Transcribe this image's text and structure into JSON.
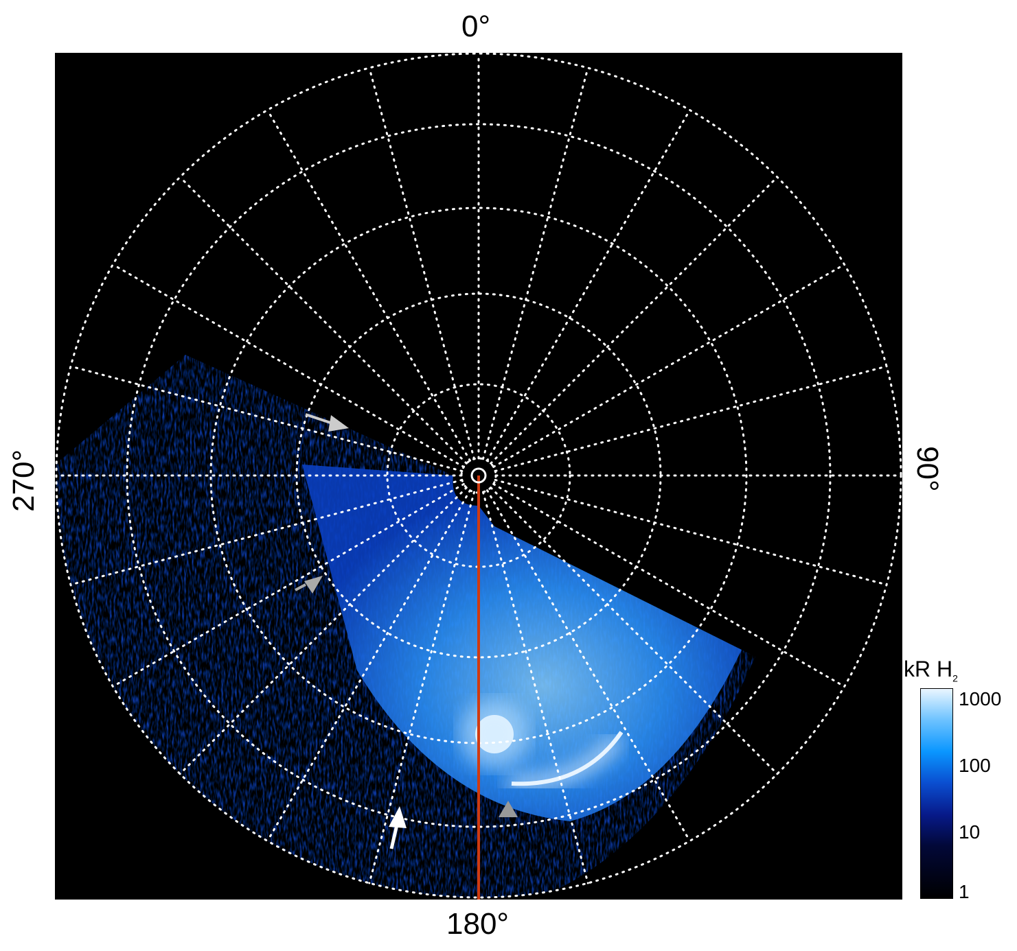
{
  "axes": {
    "top": "0°",
    "right": "90°",
    "bottom": "180°",
    "left": "270°"
  },
  "colorbar": {
    "title": "kR H",
    "title_sub": "2",
    "ticks": [
      "1000",
      "100",
      "10",
      "1"
    ],
    "scale": "log",
    "range": [
      1,
      1000
    ],
    "colors": [
      "#000000",
      "#071a8a",
      "#0a96ff",
      "#eaf6ff"
    ]
  },
  "grid": {
    "longitude_spacing_deg": 15,
    "style": "dotted",
    "color": "#ffffff"
  },
  "meridian_line_color": "#d03a10",
  "arrow_colors": {
    "white": "#ffffff",
    "gray": "#a0a0a0"
  }
}
